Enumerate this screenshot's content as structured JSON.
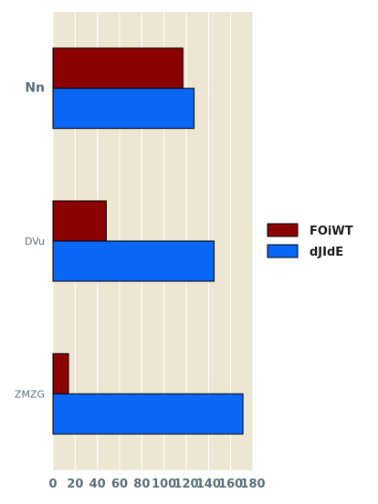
{
  "chart_data": {
    "type": "bar",
    "orientation": "horizontal",
    "categories": [
      "Nn",
      "DVu",
      "ZMZG"
    ],
    "series": [
      {
        "name": "FOiWT",
        "values": [
          117,
          48,
          14
        ],
        "color": "#8b0000"
      },
      {
        "name": "dJIdE",
        "values": [
          127,
          145,
          171
        ],
        "color": "#0a66f5"
      }
    ],
    "x_ticks": [
      "0",
      "20",
      "40",
      "60",
      "80",
      "100",
      "120",
      "140",
      "160",
      "180"
    ],
    "xlim": [
      0,
      180
    ],
    "title": "",
    "xlabel": "",
    "ylabel": "",
    "grid": true,
    "legend_position": "right",
    "background_color": "#ede6d3",
    "grid_color": "#ffffff"
  }
}
